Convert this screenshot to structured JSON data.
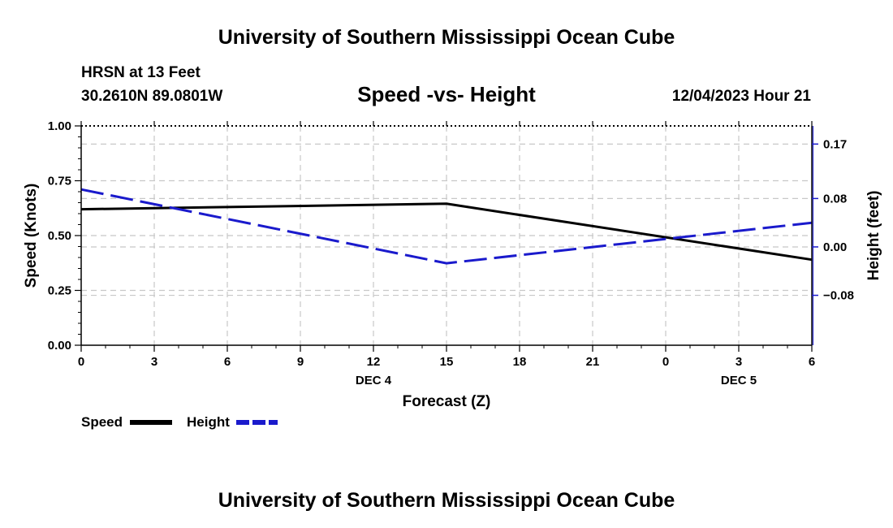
{
  "header": {
    "title": "University of Southern Mississippi Ocean Cube",
    "station": "HRSN at 13 Feet",
    "location": "30.2610N  89.0801W",
    "datetime": "12/04/2023 Hour 21",
    "footer_title": "University of Southern Mississippi Ocean Cube"
  },
  "chart_data": {
    "type": "line",
    "title": "Speed -vs- Height",
    "xlabel": "Forecast (Z)",
    "ylabel": "Speed (Knots)",
    "y2label": "Height (feet)",
    "x": [
      0,
      15,
      30
    ],
    "x_ticks": [
      "0",
      "3",
      "6",
      "9",
      "12",
      "15",
      "18",
      "21",
      "0",
      "3",
      "6"
    ],
    "x_tick_positions": [
      0,
      3,
      6,
      9,
      12,
      15,
      18,
      21,
      24,
      27,
      30
    ],
    "date_labels": [
      {
        "text": "DEC 4",
        "at": 12
      },
      {
        "text": "DEC 5",
        "at": 27
      }
    ],
    "xlim": [
      0,
      30
    ],
    "ylim": [
      0,
      1
    ],
    "y_ticks": [
      "0.00",
      "0.25",
      "0.50",
      "0.75",
      "1.00"
    ],
    "y_tick_values": [
      0,
      0.25,
      0.5,
      0.75,
      1.0
    ],
    "y2lim": [
      -0.1625,
      0.2
    ],
    "y2_ticks": [
      "−0.08",
      "0.00",
      "0.08",
      "0.17"
    ],
    "y2_tick_values": [
      -0.08,
      0.0,
      0.08,
      0.17
    ],
    "grid": true,
    "series": [
      {
        "name": "Speed",
        "axis": "left",
        "style": "solid",
        "color": "#000000",
        "values": [
          0.62,
          0.645,
          0.39
        ]
      },
      {
        "name": "Height",
        "axis": "right",
        "style": "dashed",
        "color": "#1a1acc",
        "values": [
          0.095,
          -0.027,
          0.04
        ]
      }
    ],
    "legend": [
      {
        "label": "Speed"
      },
      {
        "label": "Height"
      }
    ]
  }
}
